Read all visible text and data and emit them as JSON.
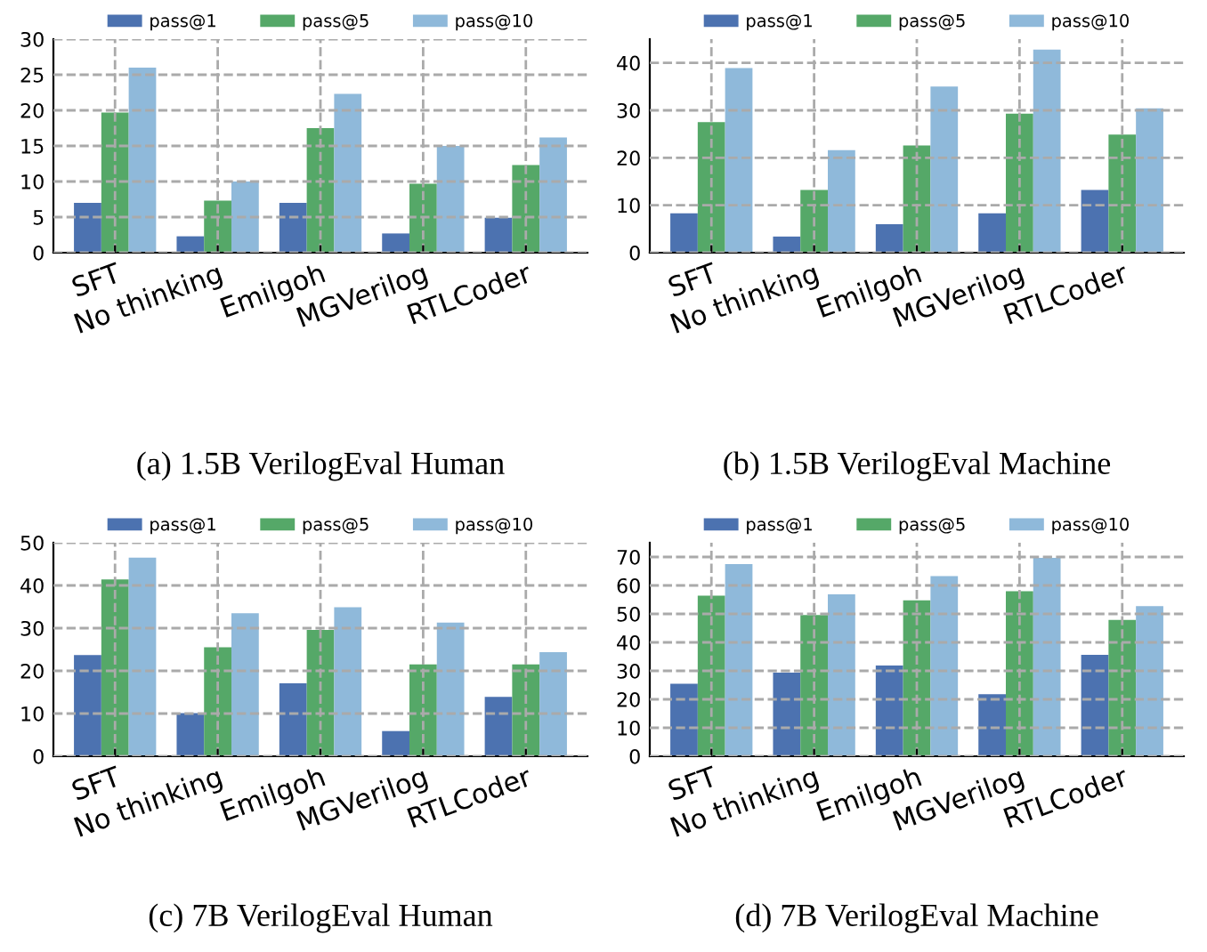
{
  "chart_data": [
    {
      "type": "bar",
      "categories": [
        "SFT",
        "No thinking",
        "Emilgoh",
        "MGVerilog",
        "RTLCoder"
      ],
      "ylim": [
        0,
        30
      ],
      "yticks": [
        0,
        5,
        10,
        15,
        20,
        25,
        30
      ],
      "grid": true,
      "legend": "top",
      "annotations": [
        "(a) 1.5B VerilogEval Human"
      ],
      "series": [
        {
          "name": "pass@1",
          "color": "#4c72b0",
          "values": [
            7.0,
            2.3,
            7.0,
            2.7,
            4.9
          ]
        },
        {
          "name": "pass@5",
          "color": "#55a868",
          "values": [
            19.7,
            7.3,
            17.5,
            9.7,
            12.3
          ]
        },
        {
          "name": "pass@10",
          "color": "#8fb9da",
          "values": [
            26.0,
            10.0,
            22.3,
            15.0,
            16.2
          ]
        }
      ]
    },
    {
      "type": "bar",
      "categories": [
        "SFT",
        "No thinking",
        "Emilgoh",
        "MGVerilog",
        "RTLCoder"
      ],
      "ylim": [
        0,
        45
      ],
      "yticks": [
        0,
        10,
        20,
        30,
        40
      ],
      "grid": true,
      "legend": "top",
      "annotations": [
        "(b) 1.5B VerilogEval Machine"
      ],
      "series": [
        {
          "name": "pass@1",
          "color": "#4c72b0",
          "values": [
            8.3,
            3.4,
            6.0,
            8.3,
            13.2
          ]
        },
        {
          "name": "pass@5",
          "color": "#55a868",
          "values": [
            27.5,
            13.2,
            22.6,
            29.3,
            24.9
          ]
        },
        {
          "name": "pass@10",
          "color": "#8fb9da",
          "values": [
            38.9,
            21.6,
            35.0,
            42.8,
            30.4
          ]
        }
      ]
    },
    {
      "type": "bar",
      "categories": [
        "SFT",
        "No thinking",
        "Emilgoh",
        "MGVerilog",
        "RTLCoder"
      ],
      "ylim": [
        0,
        50
      ],
      "yticks": [
        0,
        10,
        20,
        30,
        40,
        50
      ],
      "grid": true,
      "legend": "top",
      "annotations": [
        "(c) 7B VerilogEval Human"
      ],
      "series": [
        {
          "name": "pass@1",
          "color": "#4c72b0",
          "values": [
            23.7,
            10.1,
            17.1,
            5.9,
            13.9
          ]
        },
        {
          "name": "pass@5",
          "color": "#55a868",
          "values": [
            41.4,
            25.5,
            29.6,
            21.5,
            21.5
          ]
        },
        {
          "name": "pass@10",
          "color": "#8fb9da",
          "values": [
            46.5,
            33.5,
            34.9,
            31.3,
            24.4
          ]
        }
      ]
    },
    {
      "type": "bar",
      "categories": [
        "SFT",
        "No thinking",
        "Emilgoh",
        "MGVerilog",
        "RTLCoder"
      ],
      "ylim": [
        0,
        75
      ],
      "yticks": [
        0,
        10,
        20,
        30,
        40,
        50,
        60,
        70
      ],
      "grid": true,
      "legend": "top",
      "annotations": [
        "(d) 7B VerilogEval Machine"
      ],
      "series": [
        {
          "name": "pass@1",
          "color": "#4c72b0",
          "values": [
            25.5,
            29.4,
            31.9,
            21.8,
            35.6
          ]
        },
        {
          "name": "pass@5",
          "color": "#55a868",
          "values": [
            56.4,
            49.6,
            54.8,
            58.0,
            47.9
          ]
        },
        {
          "name": "pass@10",
          "color": "#8fb9da",
          "values": [
            67.5,
            56.9,
            63.3,
            69.7,
            52.7
          ]
        }
      ]
    }
  ]
}
